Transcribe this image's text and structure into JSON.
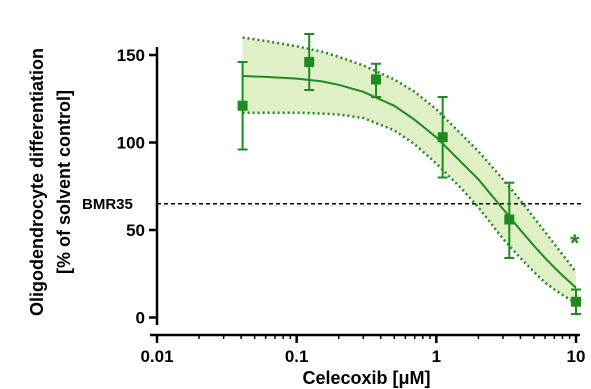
{
  "chart_data": {
    "type": "scatter",
    "x_scale": "log",
    "xlim": [
      0.01,
      10
    ],
    "ylim": [
      -10,
      170
    ],
    "x_ticks": [
      0.01,
      0.1,
      1,
      10
    ],
    "x_tick_labels": [
      "0.01",
      "0.1",
      "1",
      "10"
    ],
    "y_ticks": [
      0,
      50,
      100,
      150
    ],
    "y_tick_labels": [
      "0",
      "50",
      "100",
      "150"
    ],
    "xlabel": "Celecoxib [μM]",
    "ylabel_line1": "Oligodendrocyte differentiation",
    "ylabel_line2": "[% of solvent control]",
    "grid": false,
    "colors": {
      "points": "#1f8a1f",
      "fit_line": "#1f8a1f",
      "band_fill": "#dff0c6",
      "reference_line": "#000000"
    },
    "points": {
      "x": [
        0.041,
        0.123,
        0.37,
        1.11,
        3.33,
        10
      ],
      "y": [
        121,
        146,
        136,
        103,
        56,
        9
      ],
      "err_low": [
        96,
        130,
        126,
        80,
        34,
        2
      ],
      "err_high": [
        146,
        162,
        145,
        126,
        77,
        16
      ]
    },
    "fit_curve": {
      "x": [
        0.041,
        0.06,
        0.1,
        0.15,
        0.2,
        0.3,
        0.5,
        0.7,
        1,
        1.5,
        2,
        3,
        4,
        5,
        6,
        7,
        8,
        10
      ],
      "y": [
        138,
        137.5,
        136.5,
        135,
        133,
        129,
        121,
        113,
        103,
        89,
        79,
        62,
        50,
        41,
        34,
        28.5,
        24,
        17
      ]
    },
    "confidence_band": {
      "x": [
        0.041,
        0.06,
        0.1,
        0.15,
        0.2,
        0.3,
        0.5,
        0.7,
        1,
        1.5,
        2,
        3,
        4,
        5,
        6,
        7,
        8,
        10
      ],
      "upper": [
        160,
        158,
        155,
        152,
        149,
        144,
        136,
        129,
        119,
        105,
        95,
        79,
        67,
        57,
        49,
        42,
        36,
        26
      ],
      "lower": [
        117,
        117,
        117,
        116.5,
        116,
        114,
        107,
        99,
        88,
        74,
        63,
        45,
        34,
        26,
        20,
        16,
        13,
        8
      ]
    },
    "reference_line": {
      "y": 65,
      "label": "BMR35"
    },
    "annotations": [
      {
        "text": "*",
        "x": 10,
        "y": 45
      }
    ]
  }
}
